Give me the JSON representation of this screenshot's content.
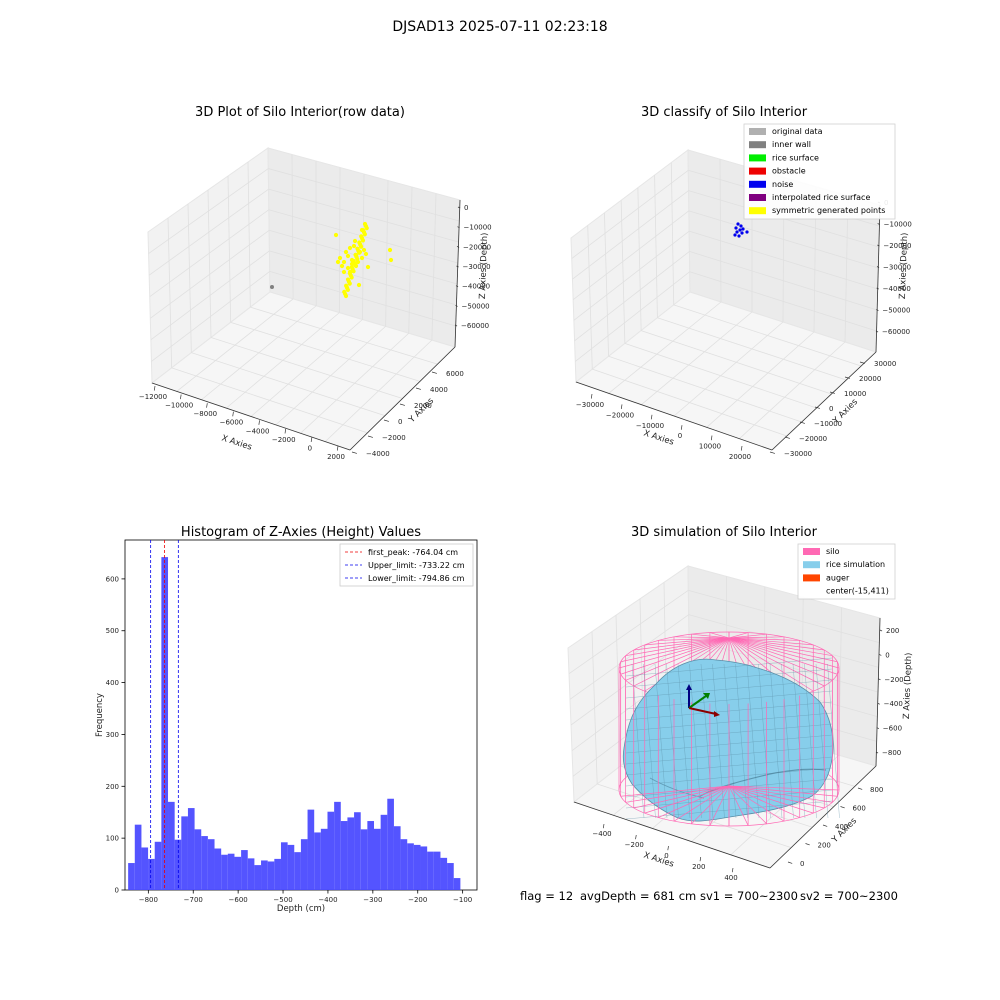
{
  "suptitle": "DJSAD13 2025-07-11 02:23:18",
  "status_line": {
    "flag": "flag = 12",
    "avg_depth": "avgDepth = 681 cm",
    "sv1": "sv1 = 700~2300",
    "sv2": "sv2 = 700~2300"
  },
  "colors": {
    "original_data": "#b0b0b0",
    "inner_wall": "#808080",
    "rice_surface": "#00ee00",
    "obstacle": "#ee0000",
    "noise": "#0000ee",
    "interpolated": "#800080",
    "symmetric": "#ffff00",
    "hist_bar": "#4b4bff",
    "silo": "#ff69b4",
    "rice_sim": "#87ceeb",
    "auger": "#ff4500"
  },
  "chart_data": [
    {
      "type": "scatter",
      "title": "3D Plot of Silo Interior(row data)",
      "xlabel": "X Axies",
      "ylabel": "Y Axies",
      "zlabel": "Z Axies (Depth)",
      "x_ticks": [
        "−12000",
        "−10000",
        "−8000",
        "−6000",
        "−4000",
        "−2000",
        "0",
        "2000"
      ],
      "y_ticks": [
        "−4000",
        "−2000",
        "0",
        "2000",
        "4000",
        "6000"
      ],
      "z_ticks": [
        "0",
        "−10000",
        "−20000",
        "−30000",
        "−40000",
        "−50000",
        "−60000"
      ]
    },
    {
      "type": "scatter",
      "title": "3D classify of Silo Interior",
      "xlabel": "X Axies",
      "ylabel": "Y Axies",
      "zlabel": "Z Axies (Depth)",
      "x_ticks": [
        "−30000",
        "−20000",
        "−10000",
        "0",
        "10000",
        "20000"
      ],
      "y_ticks": [
        "−30000",
        "−20000",
        "−10000",
        "0",
        "10000",
        "20000",
        "30000"
      ],
      "z_ticks": [
        "0",
        "−10000",
        "−20000",
        "−30000",
        "−40000",
        "−50000",
        "−60000"
      ],
      "legend": [
        "original data",
        "inner wall",
        "rice surface",
        "obstacle",
        "noise",
        "interpolated rice surface",
        "symmetric generated points"
      ],
      "legend_position": "top-right"
    },
    {
      "type": "bar",
      "title": "Histogram of Z-Axies (Height) Values",
      "xlabel": "Depth (cm)",
      "ylabel": "Frequency",
      "bin_start": -845,
      "bin_width": 14.8,
      "values": [
        52,
        126,
        82,
        60,
        93,
        642,
        170,
        97,
        142,
        158,
        117,
        104,
        98,
        80,
        68,
        70,
        64,
        77,
        61,
        48,
        57,
        55,
        60,
        92,
        87,
        73,
        98,
        155,
        111,
        118,
        151,
        170,
        133,
        140,
        150,
        117,
        133,
        118,
        145,
        176,
        123,
        98,
        90,
        87,
        84,
        74,
        74,
        62,
        52,
        23
      ],
      "xlim": [
        -852,
        -68
      ],
      "ylim": [
        0,
        675
      ],
      "x_ticks": [
        -800,
        -700,
        -600,
        -500,
        -400,
        -300,
        -200,
        -100
      ],
      "y_ticks": [
        0,
        100,
        200,
        300,
        400,
        500,
        600
      ],
      "vlines": [
        {
          "label": "first_peak: -764.04 cm",
          "x": -764.04,
          "color": "#ee0000"
        },
        {
          "label": "Upper_limit: -733.22 cm",
          "x": -733.22,
          "color": "#0000ee"
        },
        {
          "label": "Lower_limit: -794.86 cm",
          "x": -794.86,
          "color": "#0000ee"
        }
      ],
      "legend_position": "top-right"
    },
    {
      "type": "surface",
      "title": "3D simulation of Silo Interior",
      "xlabel": "X Axies",
      "ylabel": "Y Axies",
      "zlabel": "Z Axies (Depth)",
      "x_ticks": [
        "−400",
        "−200",
        "0",
        "200",
        "400"
      ],
      "y_ticks": [
        "0",
        "200",
        "400",
        "600",
        "800"
      ],
      "z_ticks": [
        "200",
        "0",
        "−200",
        "−400",
        "−600",
        "−800"
      ],
      "legend": [
        "silo",
        "rice simulation",
        "auger",
        "center(-15,411)"
      ],
      "legend_position": "top-right"
    }
  ]
}
